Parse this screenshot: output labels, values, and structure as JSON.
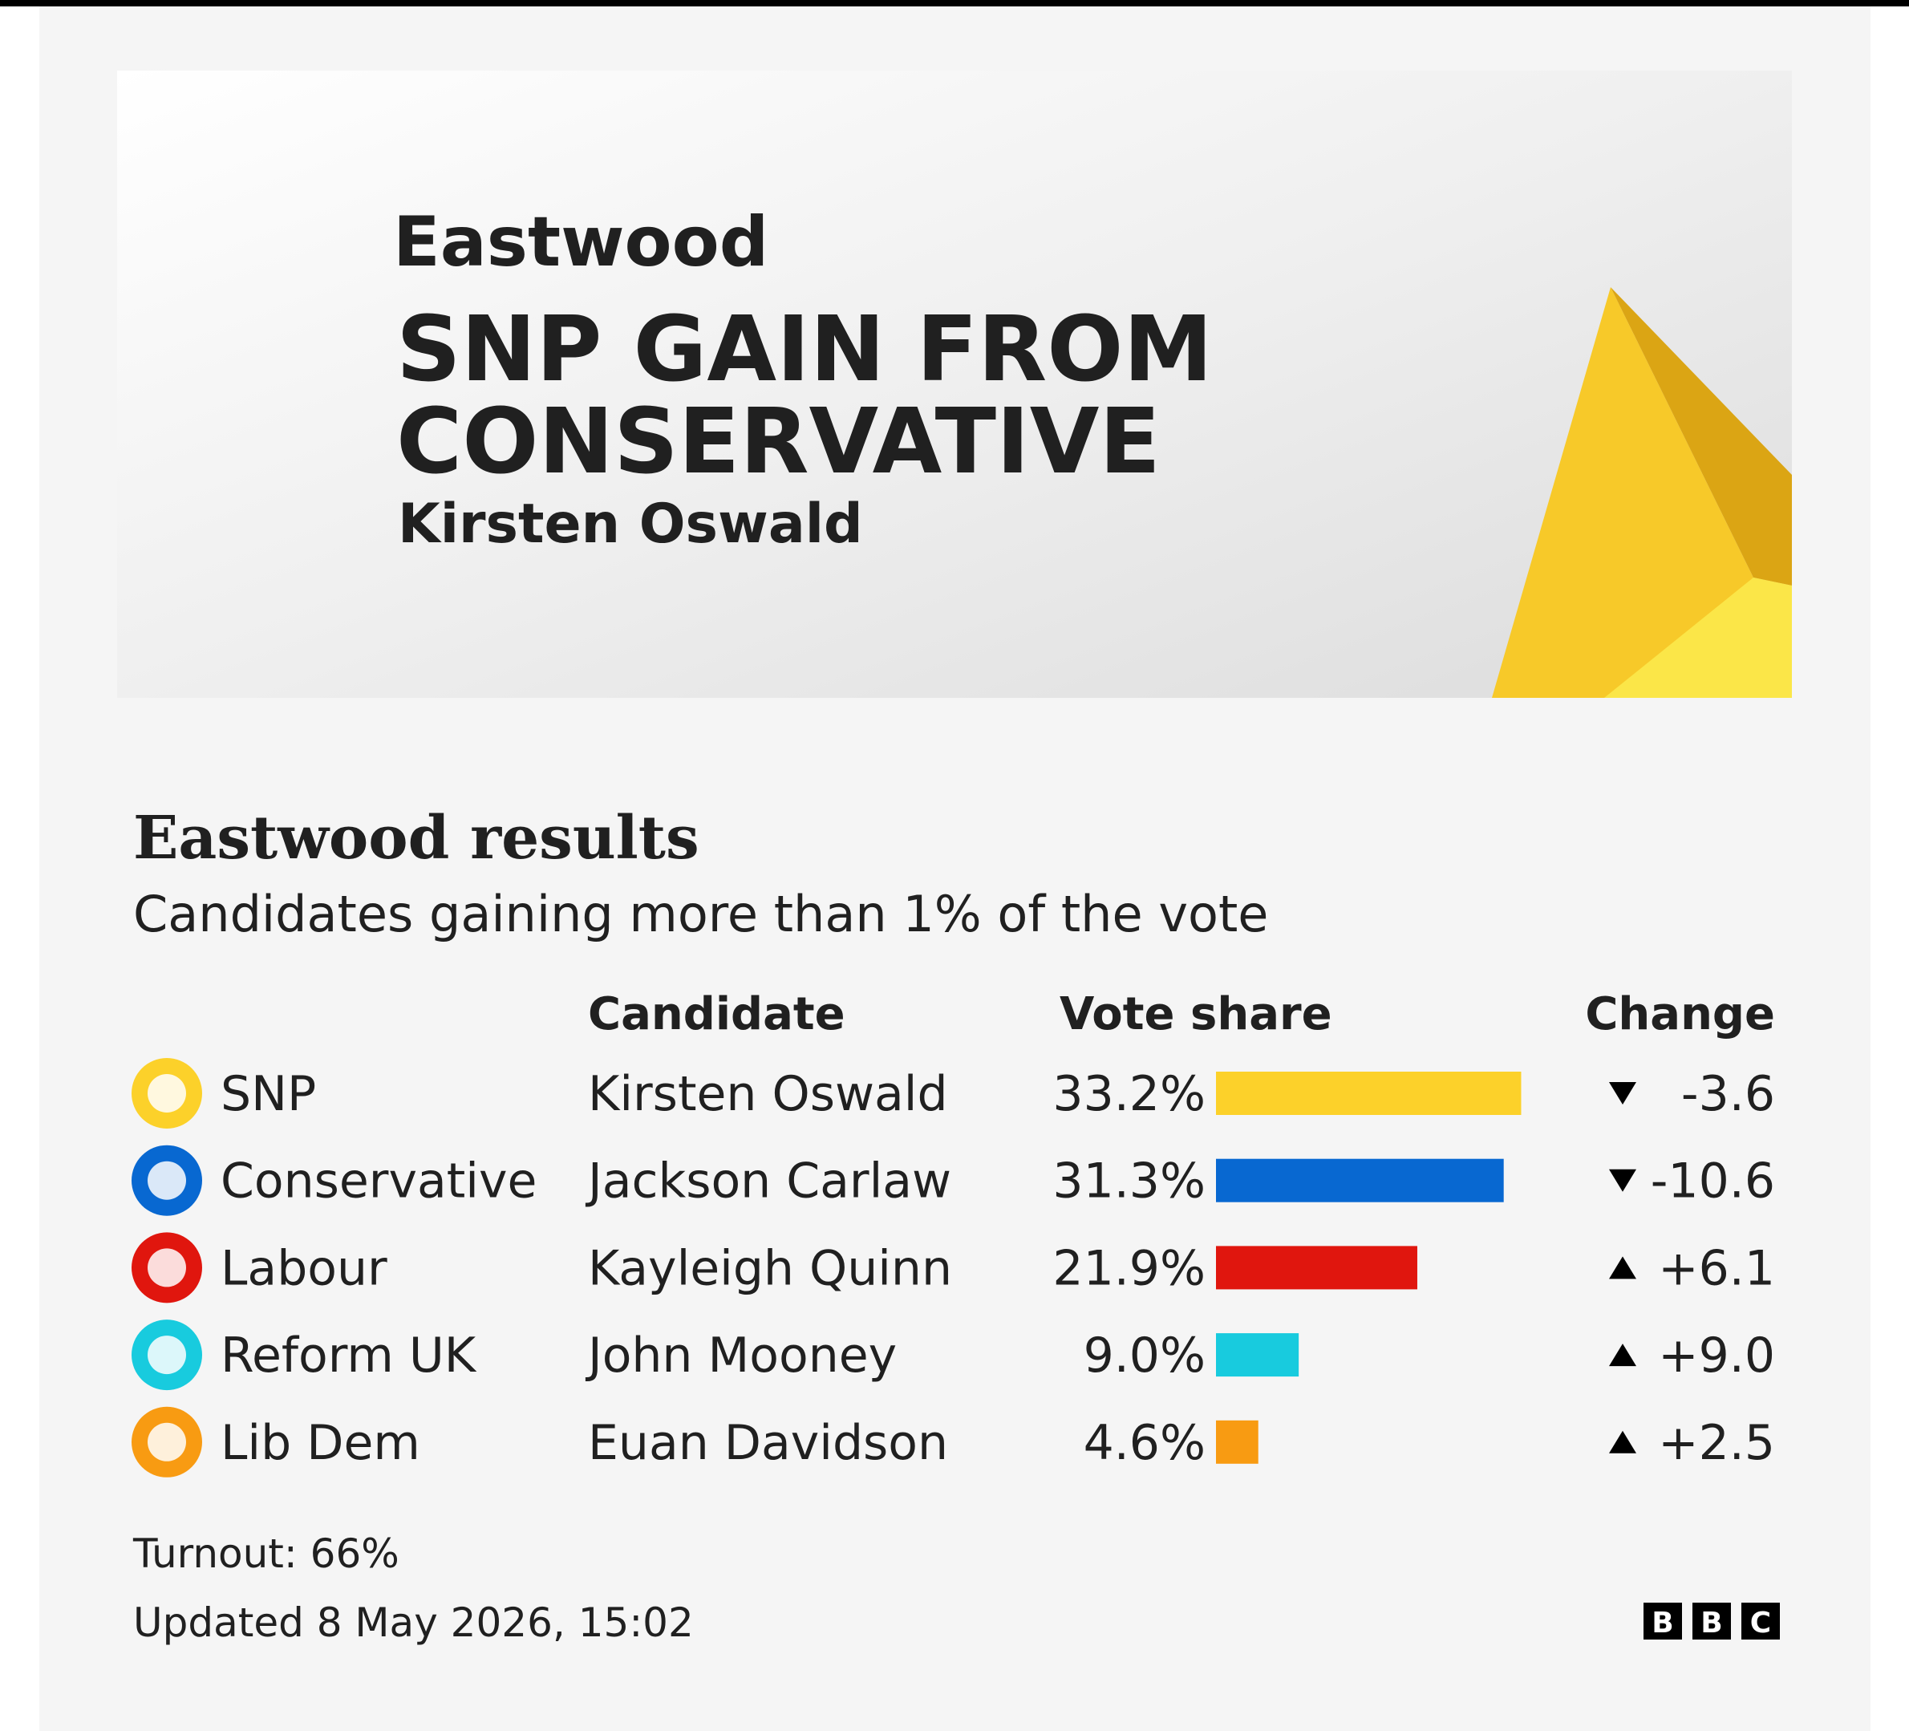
{
  "chart_data": {
    "type": "bar",
    "place": "Eastwood",
    "headline": [
      "SNP GAIN FROM",
      "CONSERVATIVE"
    ],
    "winner": "Kirsten Oswald",
    "title": "Eastwood results",
    "subtitle": "Candidates gaining more than 1% of the vote",
    "columns": [
      "Candidate",
      "Vote share",
      "Change"
    ],
    "categories": [
      "SNP",
      "Conservative",
      "Labour",
      "Reform UK",
      "Lib Dem"
    ],
    "candidates": [
      "Kirsten Oswald",
      "Jackson Carlaw",
      "Kayleigh Quinn",
      "John Mooney",
      "Euan Davidson"
    ],
    "values": [
      33.2,
      31.3,
      21.9,
      9.0,
      4.6
    ],
    "value_labels": [
      "33.2%",
      "31.3%",
      "21.9%",
      "9.0%",
      "4.6%"
    ],
    "colors": [
      "#fcd12a",
      "#0868d1",
      "#e0160e",
      "#18cbde",
      "#f89b12"
    ],
    "changes": [
      -3.6,
      -10.6,
      6.1,
      9.0,
      2.5
    ],
    "change_labels": [
      "-3.6",
      "-10.6",
      "+6.1",
      "+9.0",
      "+2.5"
    ],
    "turnout": "Turnout: 66%",
    "updated": "Updated 8 May 2026, 15:02",
    "logo": [
      "B",
      "B",
      "C"
    ]
  }
}
